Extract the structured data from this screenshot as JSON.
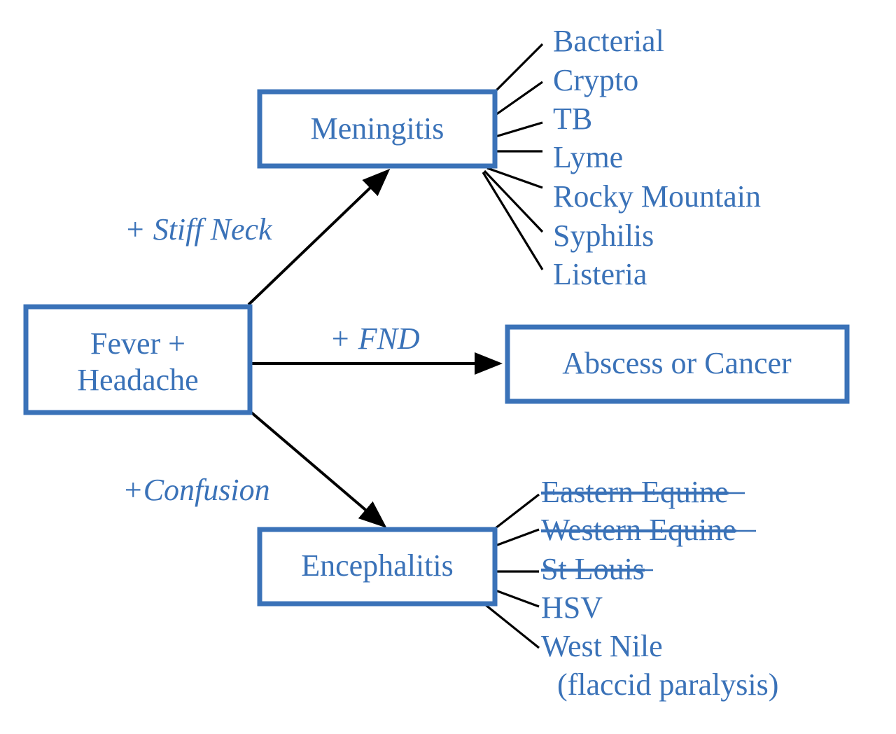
{
  "colors": {
    "accent": "#3a72b8",
    "connector": "#000000",
    "background": "#ffffff"
  },
  "nodes": {
    "start": {
      "line1": "Fever +",
      "line2": "Headache"
    },
    "meningitis": {
      "label": "Meningitis"
    },
    "abscess": {
      "label": "Abscess or Cancer"
    },
    "encephalitis": {
      "label": "Encephalitis"
    }
  },
  "edges": {
    "stiff_neck": {
      "label": "+ Stiff Neck"
    },
    "fnd": {
      "label": "+ FND"
    },
    "confusion": {
      "label": "+Confusion"
    }
  },
  "meningitis_causes": [
    "Bacterial",
    "Crypto",
    "TB",
    "Lyme",
    "Rocky Mountain",
    "Syphilis",
    "Listeria"
  ],
  "encephalitis_causes": [
    {
      "label": "Eastern Equine",
      "struck": true
    },
    {
      "label": "Western Equine",
      "struck": true
    },
    {
      "label": "St Louis",
      "struck": true
    },
    {
      "label": "HSV",
      "struck": false
    },
    {
      "label": "West Nile",
      "struck": false,
      "note": "(flaccid paralysis)"
    }
  ]
}
